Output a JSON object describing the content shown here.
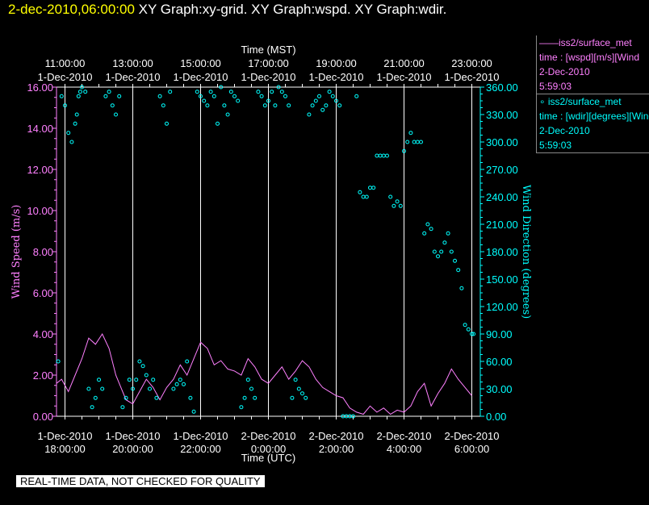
{
  "header": {
    "timestamp": "2-dec-2010,06:00:00",
    "graphs": "XY Graph:xy-grid.  XY Graph:wspd.  XY Graph:wdir."
  },
  "legend": [
    {
      "name": "——iss2/surface_met",
      "var": "time : [wspd][m/s][Wind",
      "date": "2-Dec-2010",
      "time": "5:59:03",
      "color": "#ff80ff"
    },
    {
      "name": "∘  iss2/surface_met",
      "var": "time : [wdir][degrees][Wind",
      "date": "2-Dec-2010",
      "time": "5:59:03",
      "color": "#00ffff"
    }
  ],
  "disclaimer": "REAL-TIME DATA, NOT CHECKED FOR QUALITY",
  "chart_data": {
    "type": "line",
    "x_top_label": "Time (MST)",
    "x_bottom_label": "Time (UTC)",
    "ylabel_left": "Wind Speed (m/s)",
    "ylabel_right": "Wind Direction (degrees)",
    "xlim_utc_hours": [
      17.75,
      30.25
    ],
    "ylim_left": [
      0,
      16
    ],
    "ylim_right": [
      0,
      360
    ],
    "grid": "vertical",
    "top_ticks": [
      {
        "h": 18,
        "time": "11:00:00",
        "date": "1-Dec-2010"
      },
      {
        "h": 20,
        "time": "13:00:00",
        "date": "1-Dec-2010"
      },
      {
        "h": 22,
        "time": "15:00:00",
        "date": "1-Dec-2010"
      },
      {
        "h": 24,
        "time": "17:00:00",
        "date": "1-Dec-2010"
      },
      {
        "h": 26,
        "time": "19:00:00",
        "date": "1-Dec-2010"
      },
      {
        "h": 28,
        "time": "21:00:00",
        "date": "1-Dec-2010"
      },
      {
        "h": 30,
        "time": "23:00:00",
        "date": "1-Dec-2010"
      }
    ],
    "bottom_ticks": [
      {
        "h": 18,
        "date": "1-Dec-2010",
        "time": "18:00:00"
      },
      {
        "h": 20,
        "date": "1-Dec-2010",
        "time": "20:00:00"
      },
      {
        "h": 22,
        "date": "1-Dec-2010",
        "time": "22:00:00"
      },
      {
        "h": 24,
        "date": "2-Dec-2010",
        "time": "0:00:00"
      },
      {
        "h": 26,
        "date": "2-Dec-2010",
        "time": "2:00:00"
      },
      {
        "h": 28,
        "date": "2-Dec-2010",
        "time": "4:00:00"
      },
      {
        "h": 30,
        "date": "2-Dec-2010",
        "time": "6:00:00"
      }
    ],
    "left_ticks": [
      0,
      2,
      4,
      6,
      8,
      10,
      12,
      14,
      16
    ],
    "left_tick_labels": [
      "0.00",
      "2.00",
      "4.00",
      "6.00",
      "8.00",
      "10.00",
      "12.00",
      "14.00",
      "16.00"
    ],
    "right_ticks": [
      0,
      30,
      60,
      90,
      120,
      150,
      180,
      210,
      240,
      270,
      300,
      330,
      360
    ],
    "right_tick_labels": [
      "0.00",
      "30.00",
      "60.00",
      "90.00",
      "120.00",
      "150.00",
      "180.00",
      "210.00",
      "240.00",
      "270.00",
      "300.00",
      "330.00",
      "360.00"
    ],
    "series": [
      {
        "name": "iss2/surface_met wspd",
        "axis": "left",
        "color": "#ff80ff",
        "x": [
          17.75,
          17.9,
          18.1,
          18.3,
          18.5,
          18.7,
          18.9,
          19.1,
          19.3,
          19.5,
          19.7,
          19.8,
          20.0,
          20.2,
          20.4,
          20.6,
          20.8,
          21.0,
          21.2,
          21.4,
          21.6,
          21.8,
          22.0,
          22.2,
          22.4,
          22.6,
          22.8,
          23.0,
          23.2,
          23.4,
          23.6,
          23.8,
          24.0,
          24.2,
          24.4,
          24.6,
          24.8,
          25.0,
          25.2,
          25.4,
          25.6,
          25.8,
          26.0,
          26.2,
          26.4,
          26.6,
          26.8,
          27.0,
          27.2,
          27.4,
          27.6,
          27.8,
          28.0,
          28.2,
          28.4,
          28.6,
          28.8,
          29.0,
          29.2,
          29.4,
          29.6,
          29.8,
          30.0
        ],
        "y": [
          1.6,
          1.8,
          1.2,
          2.0,
          2.8,
          3.8,
          3.5,
          4.0,
          3.3,
          2.0,
          1.2,
          0.8,
          0.6,
          1.2,
          1.8,
          1.4,
          0.8,
          1.4,
          1.8,
          2.5,
          2.0,
          2.8,
          3.6,
          3.3,
          2.5,
          2.7,
          2.3,
          2.2,
          2.0,
          2.8,
          2.4,
          1.8,
          1.6,
          2.0,
          2.4,
          1.8,
          2.2,
          2.7,
          2.4,
          1.8,
          1.4,
          1.2,
          1.0,
          0.9,
          0.4,
          0.2,
          0.1,
          0.5,
          0.2,
          0.4,
          0.1,
          0.3,
          0.2,
          0.5,
          1.2,
          1.6,
          0.5,
          1.1,
          1.6,
          2.3,
          1.8,
          1.4,
          1.0
        ]
      },
      {
        "name": "iss2/surface_met wdir",
        "axis": "right",
        "color": "#00ffff",
        "x": [
          17.8,
          17.9,
          18.0,
          18.1,
          18.2,
          18.3,
          18.35,
          18.4,
          18.45,
          18.5,
          18.6,
          18.7,
          18.8,
          18.9,
          19.0,
          19.1,
          19.2,
          19.3,
          19.4,
          19.5,
          19.6,
          19.7,
          19.8,
          19.9,
          20.0,
          20.1,
          20.2,
          20.3,
          20.4,
          20.5,
          20.6,
          20.7,
          20.8,
          20.9,
          21.0,
          21.1,
          21.2,
          21.3,
          21.4,
          21.5,
          21.6,
          21.7,
          21.8,
          21.9,
          22.0,
          22.1,
          22.2,
          22.3,
          22.4,
          22.5,
          22.6,
          22.7,
          22.8,
          22.9,
          23.0,
          23.1,
          23.2,
          23.3,
          23.4,
          23.5,
          23.6,
          23.7,
          23.8,
          23.9,
          24.0,
          24.1,
          24.2,
          24.3,
          24.4,
          24.5,
          24.6,
          24.7,
          24.8,
          24.9,
          25.0,
          25.1,
          25.2,
          25.3,
          25.4,
          25.5,
          25.6,
          25.7,
          25.8,
          25.9,
          26.0,
          26.1,
          26.2,
          26.3,
          26.4,
          26.5,
          26.6,
          26.7,
          26.8,
          26.9,
          27.0,
          27.1,
          27.2,
          27.3,
          27.4,
          27.5,
          27.6,
          27.7,
          27.8,
          27.9,
          28.0,
          28.1,
          28.2,
          28.3,
          28.4,
          28.5,
          28.6,
          28.7,
          28.8,
          28.9,
          29.0,
          29.1,
          29.2,
          29.3,
          29.4,
          29.5,
          29.6,
          29.7,
          29.8,
          29.9,
          30.0,
          30.05
        ],
        "y": [
          60,
          350,
          340,
          310,
          300,
          320,
          330,
          350,
          355,
          360,
          355,
          30,
          10,
          20,
          40,
          30,
          350,
          355,
          340,
          330,
          350,
          10,
          20,
          40,
          30,
          40,
          60,
          55,
          45,
          30,
          40,
          20,
          350,
          340,
          320,
          355,
          30,
          35,
          40,
          35,
          60,
          20,
          5,
          355,
          350,
          345,
          340,
          355,
          350,
          320,
          360,
          340,
          330,
          355,
          350,
          345,
          10,
          20,
          40,
          30,
          20,
          355,
          350,
          340,
          345,
          355,
          340,
          360,
          355,
          350,
          340,
          20,
          40,
          30,
          25,
          20,
          330,
          340,
          345,
          350,
          335,
          340,
          355,
          350,
          345,
          340,
          0,
          0,
          0,
          0,
          350,
          245,
          240,
          240,
          250,
          250,
          285,
          285,
          285,
          285,
          240,
          230,
          235,
          230,
          290,
          300,
          310,
          300,
          300,
          300,
          200,
          210,
          205,
          180,
          175,
          180,
          190,
          200,
          180,
          170,
          160,
          140,
          100,
          95,
          90,
          90
        ]
      }
    ]
  }
}
